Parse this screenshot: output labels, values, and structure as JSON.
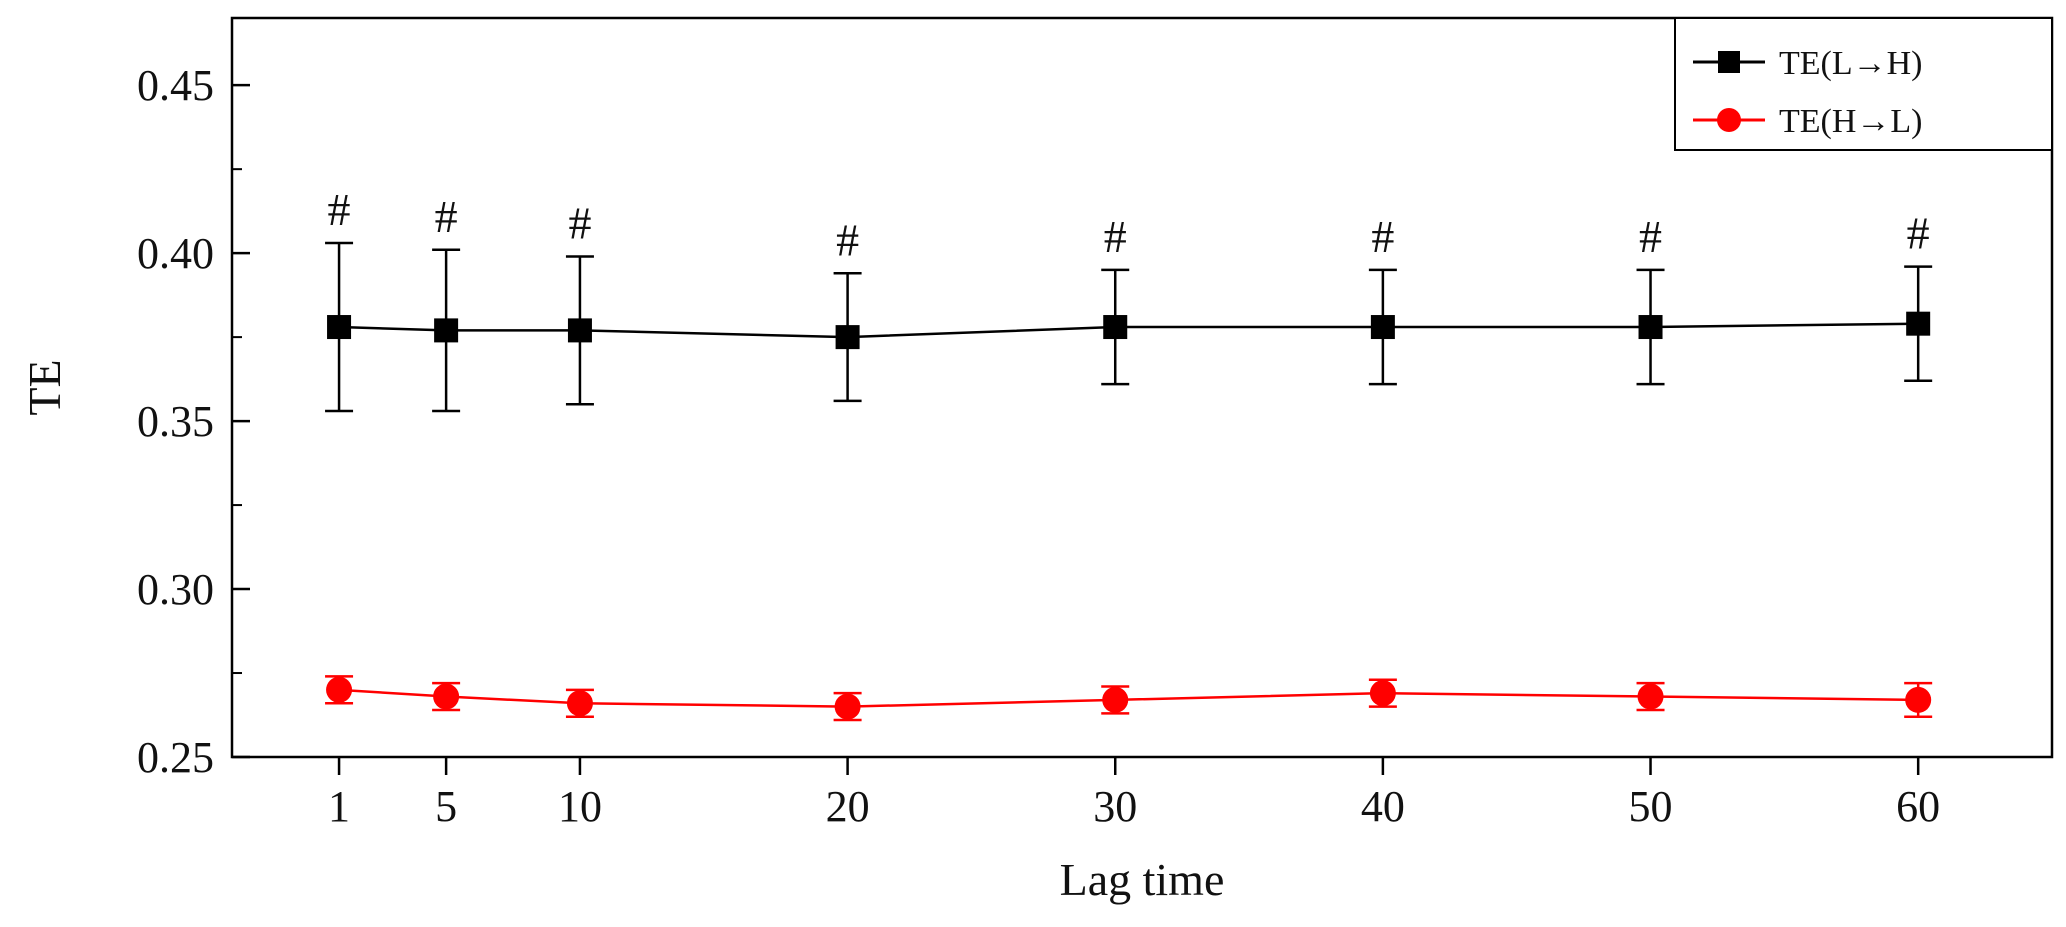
{
  "chart_data": {
    "type": "line",
    "title": "",
    "xlabel": "Lag time",
    "ylabel": "TE",
    "categories": [
      1,
      5,
      10,
      20,
      30,
      40,
      50,
      60
    ],
    "x_tick_labels": [
      "1",
      "5",
      "10",
      "20",
      "30",
      "40",
      "50",
      "60"
    ],
    "xlim": [
      -3,
      65
    ],
    "ylim": [
      0.25,
      0.47
    ],
    "y_ticks": [
      0.25,
      0.3,
      0.35,
      0.4,
      0.45
    ],
    "y_tick_labels": [
      "0.25",
      "0.30",
      "0.35",
      "0.40",
      "0.45"
    ],
    "y_minor_ticks": [
      0.275,
      0.325,
      0.375,
      0.425
    ],
    "grid": false,
    "legend_position": "top-right",
    "significance_marker": "#",
    "series": [
      {
        "name": "TE(L→H)",
        "color": "#000000",
        "marker": "square",
        "values": [
          0.378,
          0.377,
          0.377,
          0.375,
          0.378,
          0.378,
          0.378,
          0.379
        ],
        "error": [
          0.025,
          0.024,
          0.022,
          0.019,
          0.017,
          0.017,
          0.017,
          0.017
        ],
        "significant": [
          true,
          true,
          true,
          true,
          true,
          true,
          true,
          true
        ]
      },
      {
        "name": "TE(H→L)",
        "color": "#ff0000",
        "marker": "circle",
        "values": [
          0.27,
          0.268,
          0.266,
          0.265,
          0.267,
          0.269,
          0.268,
          0.267
        ],
        "error": [
          0.004,
          0.004,
          0.004,
          0.004,
          0.004,
          0.004,
          0.004,
          0.005
        ],
        "significant": [
          false,
          false,
          false,
          false,
          false,
          false,
          false,
          false
        ]
      }
    ]
  }
}
